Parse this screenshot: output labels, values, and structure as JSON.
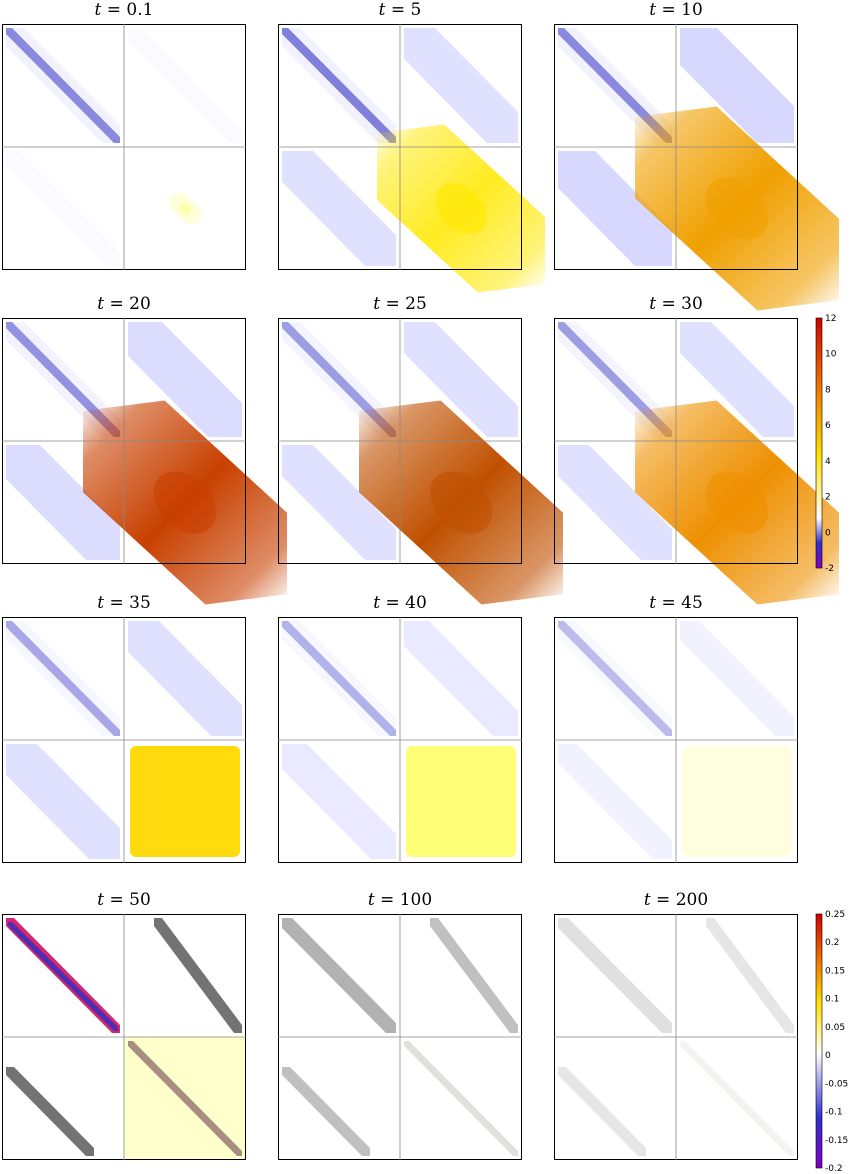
{
  "chart_data": [
    {
      "type": "heatmap",
      "panel_titles_var": "t",
      "panels": [
        {
          "t": "0.1",
          "bd_blue": 0.55,
          "offdiag_blue": 0.05,
          "lr_yellow": 0.05,
          "lr_color": "#ffff80"
        },
        {
          "t": "5",
          "bd_blue": 0.6,
          "offdiag_blue": 0.35,
          "lr_yellow": 0.8,
          "lr_color": "#ffe800"
        },
        {
          "t": "10",
          "bd_blue": 0.55,
          "offdiag_blue": 0.45,
          "lr_yellow": 1.0,
          "lr_color": "#f0a000"
        },
        {
          "t": "20",
          "bd_blue": 0.5,
          "offdiag_blue": 0.4,
          "lr_yellow": 1.0,
          "lr_color": "#c84000"
        },
        {
          "t": "25",
          "bd_blue": 0.45,
          "offdiag_blue": 0.35,
          "lr_yellow": 1.0,
          "lr_color": "#c05000"
        },
        {
          "t": "30",
          "bd_blue": 0.45,
          "offdiag_blue": 0.35,
          "lr_yellow": 1.0,
          "lr_color": "#ee9000"
        },
        {
          "t": "35",
          "bd_blue": 0.4,
          "offdiag_blue": 0.35,
          "lr_yellow": 1.0,
          "lr_color": "#ffd800"
        },
        {
          "t": "40",
          "bd_blue": 0.35,
          "offdiag_blue": 0.25,
          "lr_yellow": 1.0,
          "lr_color": "#ffff70"
        },
        {
          "t": "45",
          "bd_blue": 0.3,
          "offdiag_blue": 0.15,
          "lr_yellow": 1.0,
          "lr_color": "#ffffdd"
        }
      ],
      "colorbar": {
        "min": -2,
        "max": 12,
        "ticks": [
          "12",
          "10",
          "8",
          "6",
          "4",
          "2",
          "0",
          "-2"
        ]
      }
    },
    {
      "type": "heatmap",
      "panel_titles_var": "t",
      "panels": [
        {
          "t": "50",
          "style": "strong"
        },
        {
          "t": "100",
          "style": "medium"
        },
        {
          "t": "200",
          "style": "faint"
        }
      ],
      "colorbar": {
        "min": -0.2,
        "max": 0.25,
        "ticks": [
          "0.25",
          "0.2",
          "0.15",
          "0.1",
          "0.05",
          "0",
          "-0.05",
          "-0.1",
          "-0.15",
          "-0.2"
        ]
      }
    }
  ]
}
